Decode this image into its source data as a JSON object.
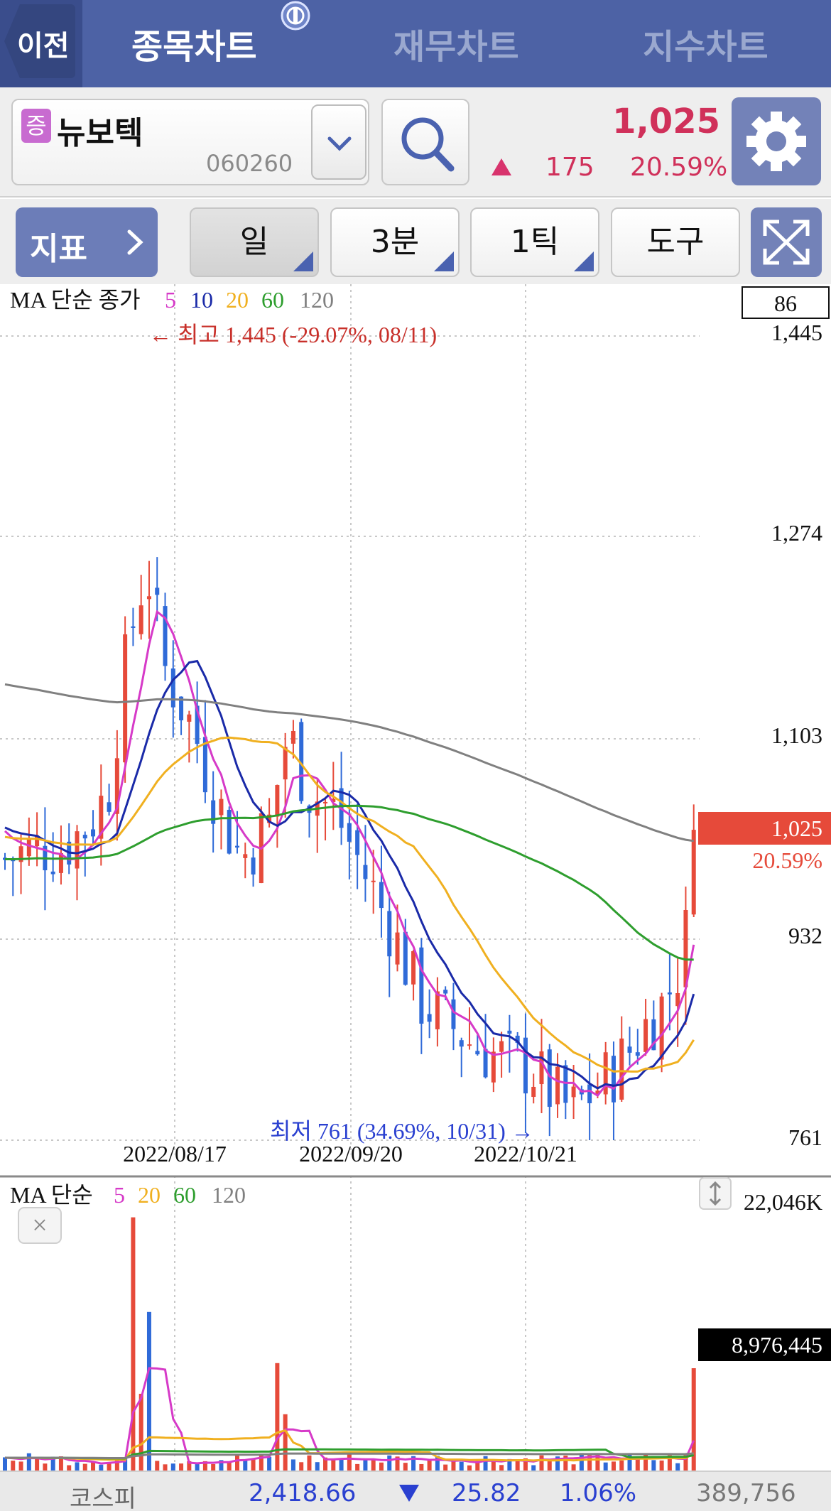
{
  "topnav": {
    "back_label": "이전",
    "tabs": [
      "종목차트",
      "재무차트",
      "지수차트"
    ],
    "active_tab": 0
  },
  "stock": {
    "badge": "증",
    "name": "뉴보텍",
    "code": "060260",
    "price": "1,025",
    "change": "175",
    "change_rate": "20.59%",
    "direction": "up",
    "up_color": "#d0305a"
  },
  "toolbar": {
    "indicator_label": "지표",
    "period": "일",
    "minute": "3분",
    "tick": "1틱",
    "tools": "도구"
  },
  "price_chart": {
    "legend_prefix": "MA 단순 종가",
    "ma_periods": [
      "5",
      "10",
      "20",
      "60",
      "120"
    ],
    "ma_colors": [
      "#d63ac8",
      "#1a2aa8",
      "#f0b020",
      "#2e9e2e",
      "#808080"
    ],
    "top_box_value": "86",
    "axis_labels": [
      "1,445",
      "1,274",
      "1,103",
      "932",
      "761"
    ],
    "current_price_tag": "1,025",
    "current_rate_tag": "20.59%",
    "high_annotation": "← 최고 1,445 (-29.07%, 08/11)",
    "low_annotation": "최저 761 (34.69%, 10/31) →",
    "date_labels": [
      "2022/08/17",
      "2022/09/20",
      "2022/10/21"
    ]
  },
  "volume_chart": {
    "legend_prefix": "MA 단순",
    "ma_periods": [
      "5",
      "20",
      "60",
      "120"
    ],
    "ma_colors": [
      "#d63ac8",
      "#f0b020",
      "#2e9e2e",
      "#808080"
    ],
    "axis_top": "22,046K",
    "current_volume_tag": "8,976,445",
    "close_label": "×"
  },
  "index_bar": {
    "name": "코스피",
    "value": "2,418.66",
    "change": "25.82",
    "rate": "1.06%",
    "volume": "389,756",
    "down_color": "#2a40d0"
  },
  "chart_data": {
    "type": "candlestick",
    "ylim": [
      761,
      1445
    ],
    "x": [
      "2022/08/17",
      "2022/09/20",
      "2022/10/21"
    ],
    "last_close": 1025,
    "high": 1445,
    "low": 761,
    "series": [
      {
        "name": "5",
        "color": "#d63ac8"
      },
      {
        "name": "10",
        "color": "#1a2aa8"
      },
      {
        "name": "20",
        "color": "#f0b020"
      },
      {
        "name": "60",
        "color": "#2e9e2e"
      },
      {
        "name": "120",
        "color": "#808080"
      }
    ]
  }
}
